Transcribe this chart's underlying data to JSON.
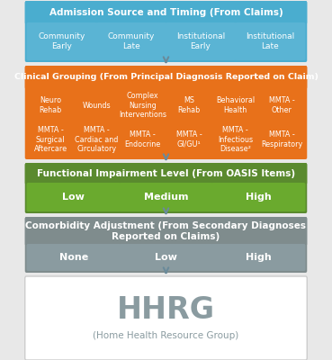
{
  "bg_color": "#e8e8e8",
  "blue_header": "#4aadcf",
  "orange_header": "#e8711a",
  "green_header": "#5a8a2e",
  "gray_header": "#7f8c8d",
  "orange_cell": "#e8711a",
  "blue_cell": "#5ab4d4",
  "green_cell": "#6aaa2e",
  "gray_cell": "#8a9ba0",
  "white": "#ffffff",
  "arrow_color": "#6a8a9a",
  "text_white": "#ffffff",
  "text_gray": "#8a9ba0",
  "border_color": "#cccccc",
  "section1_header": "Admission Source and Timing (From Claims)",
  "section1_cells": [
    "Community\nEarly",
    "Community\nLate",
    "Institutional\nEarly",
    "Institutional\nLate"
  ],
  "section2_header": "Clinical Grouping (From Principal Diagnosis Reported on Claim)",
  "section2_row1": [
    "Neuro\nRehab",
    "Wounds",
    "Complex\nNursing\nInterventions",
    "MS\nRehab",
    "Behavioral\nHealth",
    "MMTA -\nOther"
  ],
  "section2_row2": [
    "MMTA -\nSurgical\nAftercare",
    "MMTA -\nCardiac and\nCirculatory",
    "MMTA -\nEndocrine",
    "MMTA -\nGI/GU¹",
    "MMTA -\nInfectious\nDisease²",
    "MMTA -\nRespiratory"
  ],
  "section3_header": "Functional Impairment Level (From OASIS Items)",
  "section3_cells": [
    "Low",
    "Medium",
    "High"
  ],
  "section4_header": "Comorbidity Adjustment (From Secondary Diagnoses\nReported on Claims)",
  "section4_cells": [
    "None",
    "Low",
    "High"
  ],
  "section5_main": "HHRG",
  "section5_sub": "(Home Health Resource Group)"
}
